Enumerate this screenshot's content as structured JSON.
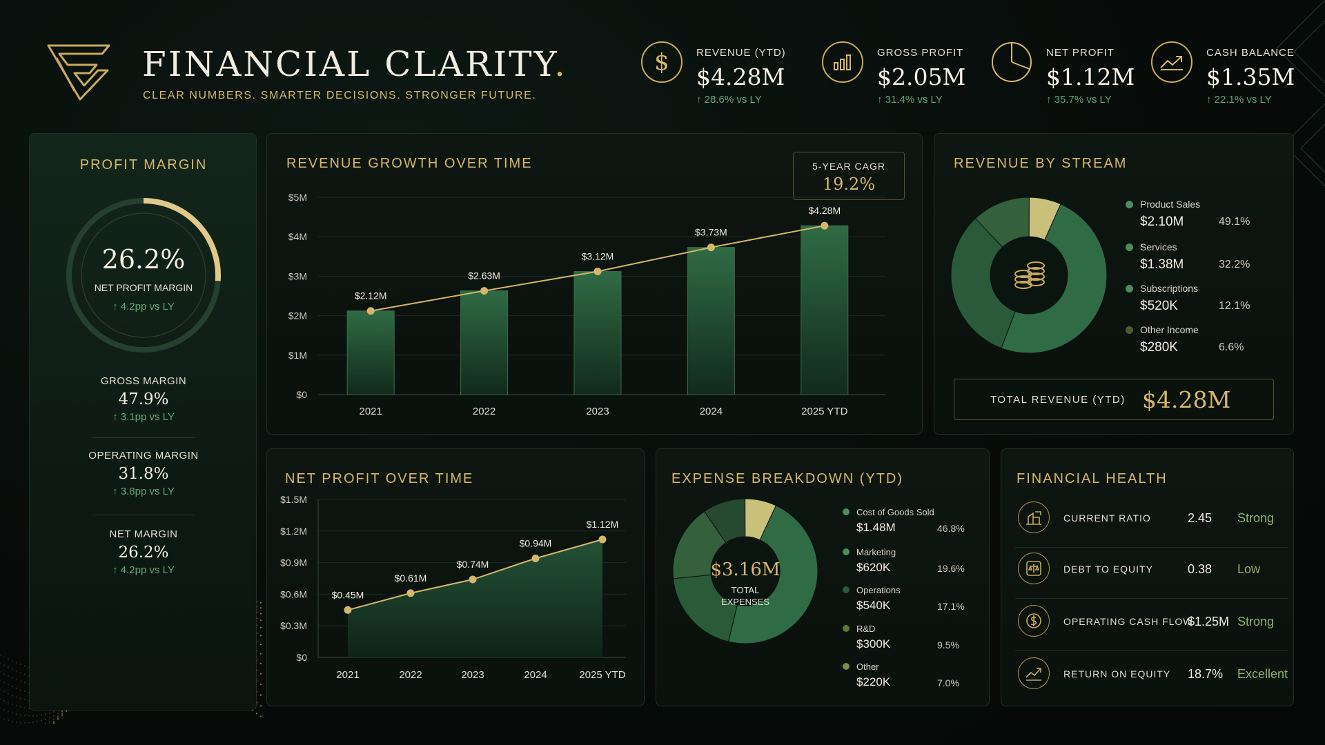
{
  "header": {
    "title": "FINANCIAL CLARITY",
    "title_dot": ".",
    "tagline": "CLEAR NUMBERS. SMARTER DECISIONS. STRONGER FUTURE."
  },
  "kpis": [
    {
      "label": "REVENUE (YTD)",
      "value": "$4.28M",
      "change": "28.6% vs LY",
      "icon": "dollar-icon"
    },
    {
      "label": "GROSS PROFIT",
      "value": "$2.05M",
      "change": "31.4% vs LY",
      "icon": "bar-chart-icon"
    },
    {
      "label": "NET PROFIT",
      "value": "$1.12M",
      "change": "35.7% vs LY",
      "icon": "pie-chart-icon"
    },
    {
      "label": "CASH BALANCE",
      "value": "$1.35M",
      "change": "22.1% vs LY",
      "icon": "trend-up-icon"
    }
  ],
  "profit_margin": {
    "title": "PROFIT MARGIN",
    "gauge_value": "26.2%",
    "gauge_fraction": 0.262,
    "gauge_label": "NET PROFIT MARGIN",
    "gauge_change": "4.2pp vs LY",
    "items": [
      {
        "label": "GROSS MARGIN",
        "value": "47.9%",
        "change": "3.1pp vs LY"
      },
      {
        "label": "OPERATING MARGIN",
        "value": "31.8%",
        "change": "3.8pp vs LY"
      },
      {
        "label": "NET MARGIN",
        "value": "26.2%",
        "change": "4.2pp vs LY"
      }
    ]
  },
  "revenue_growth": {
    "title": "REVENUE GROWTH OVER TIME",
    "cagr_label": "5-YEAR CAGR",
    "cagr_value": "19.2%"
  },
  "net_profit": {
    "title": "NET PROFIT OVER TIME"
  },
  "revenue_stream": {
    "title": "REVENUE BY STREAM",
    "total_label": "TOTAL REVENUE (YTD)",
    "total_value": "$4.28M",
    "items": [
      {
        "name": "Product Sales",
        "value": "$2.10M",
        "pct": "49.1%",
        "color": "#2f6b44"
      },
      {
        "name": "Services",
        "value": "$1.38M",
        "pct": "32.2%",
        "color": "#3f7d4f"
      },
      {
        "name": "Subscriptions",
        "value": "$520K",
        "pct": "12.1%",
        "color": "#5d8a45"
      },
      {
        "name": "Other Income",
        "value": "$280K",
        "pct": "6.6%",
        "color": "#4b5a32"
      }
    ]
  },
  "expense_breakdown": {
    "title": "EXPENSE BREAKDOWN (YTD)",
    "center_value": "$3.16M",
    "center_label_1": "TOTAL",
    "center_label_2": "EXPENSES",
    "items": [
      {
        "name": "Cost of Goods Sold",
        "value": "$1.48M",
        "pct": "46.8%",
        "color": "#3d7b4e"
      },
      {
        "name": "Marketing",
        "value": "$620K",
        "pct": "19.6%",
        "color": "#5b9061"
      },
      {
        "name": "Operations",
        "value": "$540K",
        "pct": "17.1%",
        "color": "#2a5a38"
      },
      {
        "name": "R&D",
        "value": "$300K",
        "pct": "9.5%",
        "color": "#5b7a3a"
      },
      {
        "name": "Other",
        "value": "$220K",
        "pct": "7.0%",
        "color": "#7a8a4a"
      }
    ]
  },
  "financial_health": {
    "title": "FINANCIAL HEALTH",
    "items": [
      {
        "name": "CURRENT RATIO",
        "value": "2.45",
        "status": "Strong",
        "icon": "building-icon"
      },
      {
        "name": "DEBT TO EQUITY",
        "value": "0.38",
        "status": "Low",
        "icon": "balance-icon"
      },
      {
        "name": "OPERATING CASH FLOW",
        "value": "$1.25M",
        "status": "Strong",
        "icon": "cash-flow-icon"
      },
      {
        "name": "RETURN ON EQUITY",
        "value": "18.7%",
        "status": "Excellent",
        "icon": "roe-chart-icon"
      }
    ]
  },
  "chart_data": [
    {
      "type": "bar",
      "title": "REVENUE GROWTH OVER TIME",
      "categories": [
        "2021",
        "2022",
        "2023",
        "2024",
        "2025 YTD"
      ],
      "values": [
        2.12,
        2.63,
        3.12,
        3.73,
        4.28
      ],
      "data_labels": [
        "$2.12M",
        "$2.63M",
        "$3.12M",
        "$3.73M",
        "$4.28M"
      ],
      "y_ticks": [
        "$0",
        "$1M",
        "$2M",
        "$3M",
        "$4M",
        "$5M"
      ],
      "ylim": [
        0,
        5
      ],
      "overlay": "line",
      "grid": true
    },
    {
      "type": "area",
      "title": "NET PROFIT OVER TIME",
      "categories": [
        "2021",
        "2022",
        "2023",
        "2024",
        "2025 YTD"
      ],
      "values": [
        0.45,
        0.61,
        0.74,
        0.94,
        1.12
      ],
      "data_labels": [
        "$0.45M",
        "$0.61M",
        "$0.74M",
        "$0.94M",
        "$1.12M"
      ],
      "y_ticks": [
        "$0",
        "$0.3M",
        "$0.6M",
        "$0.9M",
        "$1.2M",
        "$1.5M"
      ],
      "ylim": [
        0,
        1.5
      ],
      "grid": true
    },
    {
      "type": "pie",
      "title": "REVENUE BY STREAM",
      "categories": [
        "Product Sales",
        "Services",
        "Subscriptions",
        "Other Income"
      ],
      "values": [
        49.1,
        32.2,
        12.1,
        6.6
      ]
    },
    {
      "type": "pie",
      "title": "EXPENSE BREAKDOWN (YTD)",
      "categories": [
        "Cost of Goods Sold",
        "Marketing",
        "Operations",
        "R&D",
        "Other"
      ],
      "values": [
        46.8,
        19.6,
        17.1,
        9.5,
        7.0
      ]
    }
  ]
}
